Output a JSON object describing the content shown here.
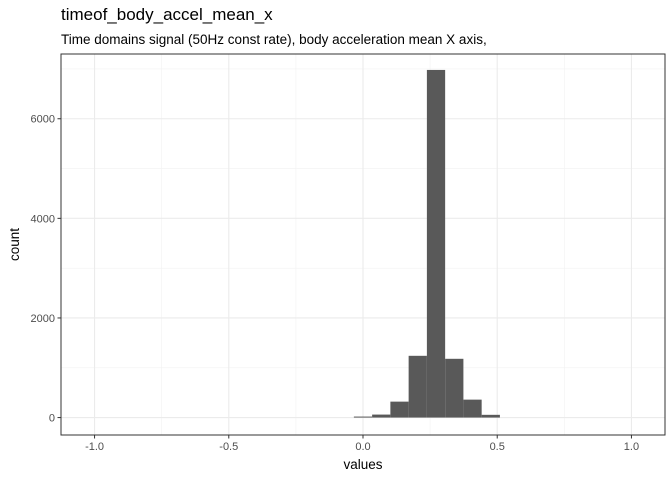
{
  "chart_data": {
    "type": "bar",
    "title": "timeof_body_accel_mean_x",
    "subtitle": "Time domains signal (50Hz const rate), body acceleration mean X axis,",
    "xlabel": "values",
    "ylabel": "count",
    "xlim": [
      -1.125,
      1.125
    ],
    "ylim": [
      -350,
      7300
    ],
    "x_ticks": [
      -1.0,
      -0.5,
      0.0,
      0.5,
      1.0
    ],
    "x_tick_labels": [
      "-1.0",
      "-0.5",
      "0.0",
      "0.5",
      "1.0"
    ],
    "y_ticks": [
      0,
      2000,
      4000,
      6000
    ],
    "y_tick_labels": [
      "0",
      "2000",
      "4000",
      "6000"
    ],
    "grid": true,
    "legend": "none",
    "bar_color": "#595959",
    "bins": [
      {
        "x0": -0.034,
        "x1": 0.034,
        "count": 20
      },
      {
        "x0": 0.034,
        "x1": 0.102,
        "count": 60
      },
      {
        "x0": 0.102,
        "x1": 0.17,
        "count": 320
      },
      {
        "x0": 0.17,
        "x1": 0.238,
        "count": 1240
      },
      {
        "x0": 0.238,
        "x1": 0.306,
        "count": 6980
      },
      {
        "x0": 0.306,
        "x1": 0.374,
        "count": 1180
      },
      {
        "x0": 0.374,
        "x1": 0.442,
        "count": 360
      },
      {
        "x0": 0.442,
        "x1": 0.51,
        "count": 55
      }
    ]
  }
}
